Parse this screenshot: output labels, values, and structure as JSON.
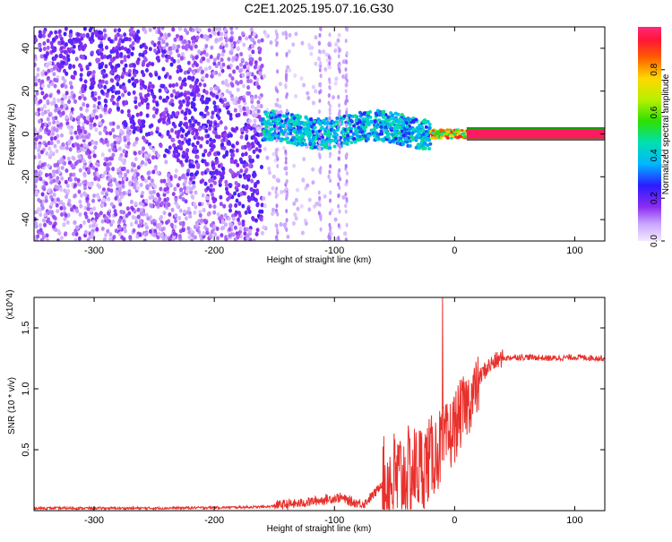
{
  "title": "C2E1.2025.195.07.16.G30",
  "chart_data": [
    {
      "type": "heatmap",
      "name": "spectrogram",
      "xlabel": "Height of straight line (km)",
      "ylabel": "Frequency (Hz)",
      "xlim": [
        -350,
        125
      ],
      "ylim": [
        -50,
        50
      ],
      "xticks": [
        -300,
        -200,
        -100,
        0,
        100
      ],
      "yticks": [
        -40,
        -20,
        0,
        20,
        40
      ],
      "colorbar": {
        "label": "Normalized spectral amplitude",
        "range": [
          0.0,
          1.0
        ],
        "ticks": [
          0.0,
          0.2,
          0.4,
          0.6,
          0.8
        ]
      },
      "regions": [
        {
          "x": [
            -350,
            -160
          ],
          "freq": [
            -50,
            50
          ],
          "amplitude": 0.12,
          "pattern": "broadband noise"
        },
        {
          "x": [
            -160,
            -90
          ],
          "freq": [
            -60,
            60
          ],
          "amplitude": 0.05,
          "pattern": "sparse noise"
        },
        {
          "x": [
            -160,
            -20
          ],
          "freq": [
            -6,
            8
          ],
          "amplitude": 0.3,
          "pattern": "central band"
        },
        {
          "x": [
            -20,
            10
          ],
          "freq": [
            -2,
            2
          ],
          "amplitude": 0.7,
          "pattern": "narrow carrier"
        },
        {
          "x": [
            10,
            125
          ],
          "freq": [
            -1,
            1
          ],
          "amplitude": 0.9,
          "pattern": "steady carrier"
        }
      ]
    },
    {
      "type": "line",
      "name": "snr",
      "xlabel": "Height of straight line (km)",
      "ylabel": "SNR (10 * v/v)",
      "y_multiplier": "(x10^4)",
      "xlim": [
        -350,
        125
      ],
      "ylim": [
        0,
        1.75
      ],
      "xticks": [
        -300,
        -200,
        -100,
        0,
        100
      ],
      "yticks": [
        0.5,
        1.0,
        1.5
      ],
      "ytick_labels": [
        "0.5",
        "1.0",
        "1.5"
      ],
      "line_color": "#e8302c",
      "x": [
        -350,
        -300,
        -250,
        -200,
        -160,
        -130,
        -110,
        -95,
        -85,
        -75,
        -65,
        -55,
        -45,
        -35,
        -25,
        -15,
        -10,
        -5,
        0,
        5,
        10,
        15,
        20,
        25,
        30,
        35,
        40,
        50,
        60,
        80,
        100,
        125
      ],
      "y": [
        0.02,
        0.02,
        0.02,
        0.025,
        0.03,
        0.05,
        0.08,
        0.1,
        0.06,
        0.05,
        0.15,
        0.32,
        0.35,
        0.4,
        0.45,
        0.55,
        0.6,
        0.65,
        0.75,
        0.85,
        0.92,
        1.0,
        1.08,
        1.15,
        1.2,
        1.23,
        1.25,
        1.26,
        1.26,
        1.25,
        1.26,
        1.25
      ],
      "spike": {
        "x": -10,
        "y": 1.75
      }
    }
  ]
}
